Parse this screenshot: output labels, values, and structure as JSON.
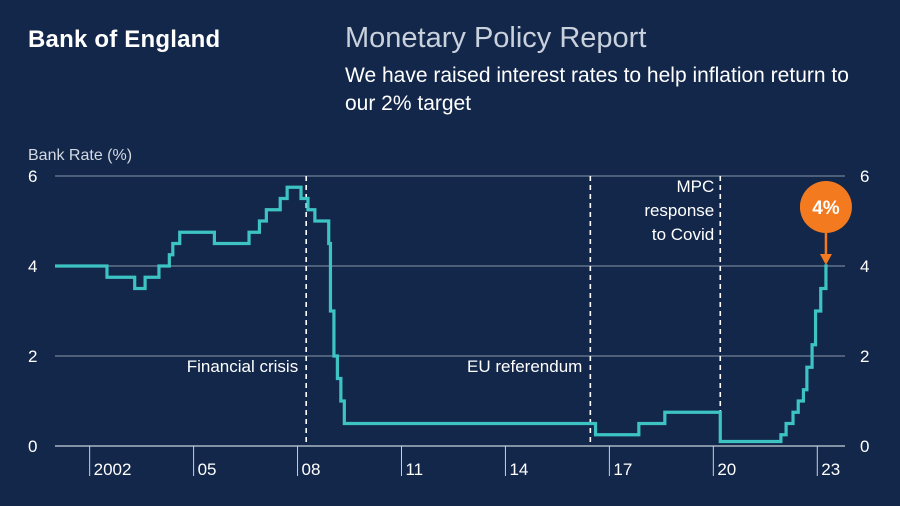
{
  "header": {
    "brand": "Bank of England",
    "report_title": "Monetary Policy Report",
    "subtitle": "We have raised interest rates to help inflation return to our 2% target"
  },
  "colors": {
    "background": "#12274a",
    "line": "#3ec3c4",
    "highlight": "#f47a20",
    "text": "#ffffff",
    "grid": "#8a97ab"
  },
  "chart_data": {
    "type": "line",
    "title": "",
    "ylabel": "Bank Rate (%)",
    "xlabel": "",
    "ylim": [
      0,
      6
    ],
    "xlim": [
      2001.0,
      2023.8
    ],
    "y_ticks": [
      0,
      2,
      4,
      6
    ],
    "x_ticks": [
      {
        "value": 2002,
        "label": "2002"
      },
      {
        "value": 2005,
        "label": "05"
      },
      {
        "value": 2008,
        "label": "08"
      },
      {
        "value": 2011,
        "label": "11"
      },
      {
        "value": 2014,
        "label": "14"
      },
      {
        "value": 2017,
        "label": "17"
      },
      {
        "value": 2020,
        "label": "20"
      },
      {
        "value": 2023,
        "label": "23"
      }
    ],
    "series": [
      {
        "name": "Bank Rate",
        "step": true,
        "points": [
          [
            2001.0,
            4.0
          ],
          [
            2002.1,
            4.0
          ],
          [
            2002.5,
            3.75
          ],
          [
            2003.3,
            3.5
          ],
          [
            2003.6,
            3.75
          ],
          [
            2004.0,
            4.0
          ],
          [
            2004.3,
            4.25
          ],
          [
            2004.4,
            4.5
          ],
          [
            2004.6,
            4.75
          ],
          [
            2005.6,
            4.5
          ],
          [
            2006.6,
            4.75
          ],
          [
            2006.9,
            5.0
          ],
          [
            2007.1,
            5.25
          ],
          [
            2007.5,
            5.5
          ],
          [
            2007.7,
            5.75
          ],
          [
            2008.1,
            5.5
          ],
          [
            2008.3,
            5.25
          ],
          [
            2008.5,
            5.0
          ],
          [
            2008.9,
            4.5
          ],
          [
            2008.95,
            3.0
          ],
          [
            2009.05,
            2.0
          ],
          [
            2009.15,
            1.5
          ],
          [
            2009.25,
            1.0
          ],
          [
            2009.35,
            0.5
          ],
          [
            2016.6,
            0.25
          ],
          [
            2017.85,
            0.5
          ],
          [
            2018.6,
            0.75
          ],
          [
            2020.2,
            0.1
          ],
          [
            2021.95,
            0.25
          ],
          [
            2022.1,
            0.5
          ],
          [
            2022.3,
            0.75
          ],
          [
            2022.45,
            1.0
          ],
          [
            2022.6,
            1.25
          ],
          [
            2022.7,
            1.75
          ],
          [
            2022.85,
            2.25
          ],
          [
            2022.95,
            3.0
          ],
          [
            2023.1,
            3.5
          ],
          [
            2023.25,
            4.0
          ],
          [
            2023.3,
            4.0
          ]
        ]
      }
    ],
    "events": [
      {
        "x": 2008.25,
        "label": [
          "Financial crisis"
        ],
        "label_side": "left"
      },
      {
        "x": 2016.45,
        "label": [
          "EU referendum"
        ],
        "label_side": "left"
      },
      {
        "x": 2020.2,
        "label": [
          "MPC",
          "response",
          "to Covid"
        ],
        "label_side": "left-top"
      }
    ],
    "callout": {
      "x": 2023.25,
      "y": 4.0,
      "label": "4%"
    }
  }
}
